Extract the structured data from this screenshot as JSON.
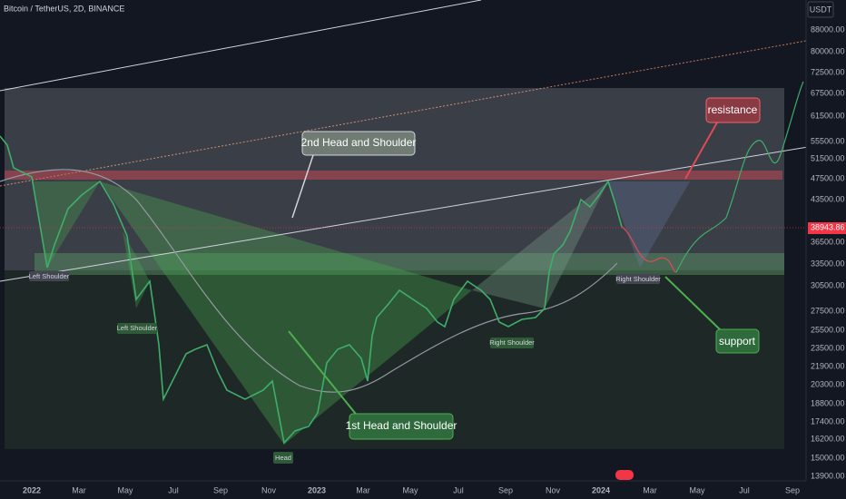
{
  "header": {
    "symbol": "Bitcoin / TetherUS, 2D, BINANCE",
    "currency": "USDT"
  },
  "price_axis": {
    "labels": [
      "88000.00",
      "80000.00",
      "72500.00",
      "67500.00",
      "61500.00",
      "55500.00",
      "51500.00",
      "47500.00",
      "43500.00",
      "36500.00",
      "33500.00",
      "30500.00",
      "27500.00",
      "25500.00",
      "23500.00",
      "21900.00",
      "20300.00",
      "18800.00",
      "17400.00",
      "16200.00",
      "15000.00",
      "13900.00"
    ],
    "current_price": "38943.86"
  },
  "time_axis": {
    "labels": [
      "2022",
      "Mar",
      "May",
      "Jul",
      "Sep",
      "Nov",
      "2023",
      "Mar",
      "May",
      "Jul",
      "Sep",
      "Nov",
      "2024",
      "Mar",
      "May",
      "Jul",
      "Sep"
    ]
  },
  "annotations": {
    "second_pattern": "2nd Head and Shoulder",
    "first_pattern": "1st Head and Shoulder",
    "resistance": "resistance",
    "support": "support"
  },
  "pattern_labels": {
    "left_shoulder_1": "Left Shoulder",
    "left_shoulder_2": "Left Shoulder",
    "head": "Head",
    "right_shoulder_1": "Right Shoulder",
    "right_shoulder_2": "Right Shoulder"
  }
}
